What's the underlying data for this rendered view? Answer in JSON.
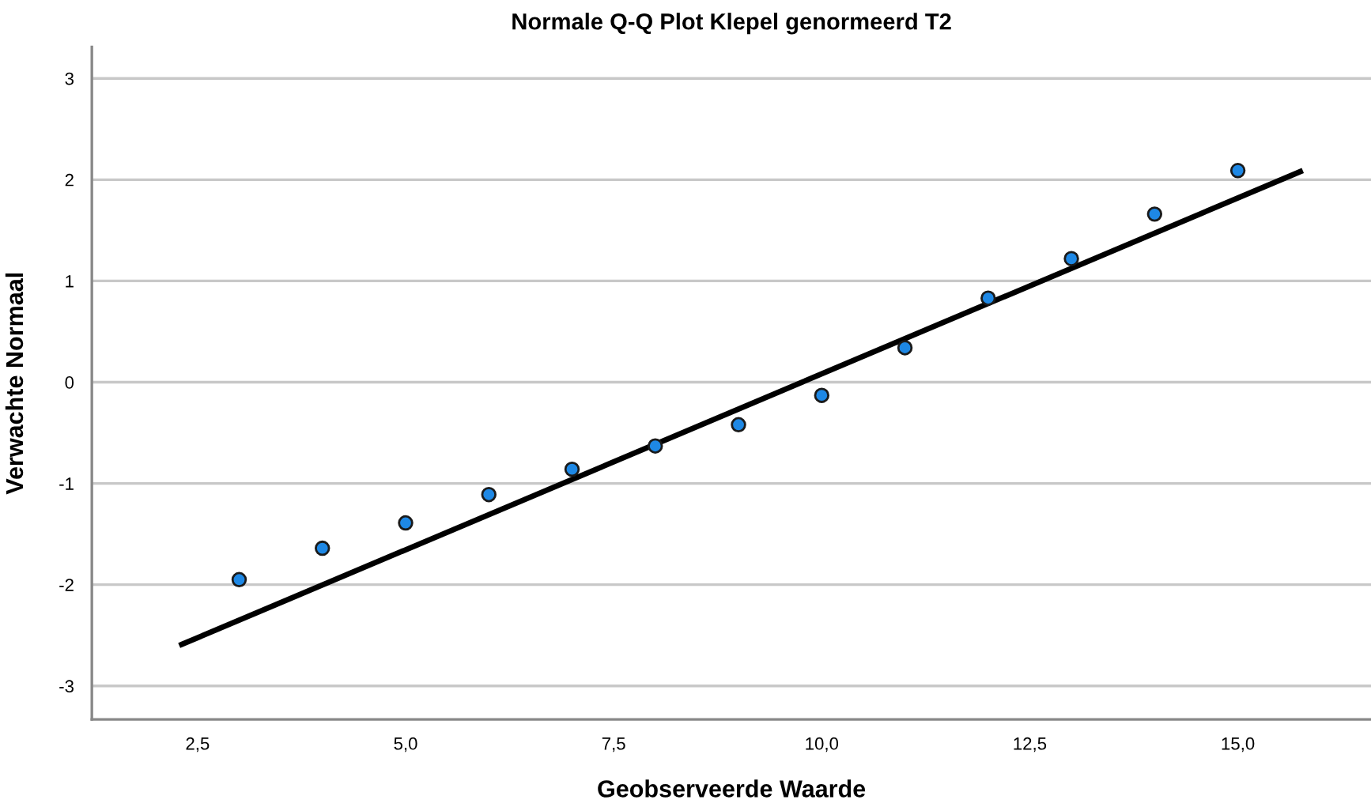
{
  "chart_data": {
    "type": "scatter",
    "title": "Normale Q-Q Plot Klepel genormeerd T2",
    "xlabel": "Geobserveerde Waarde",
    "ylabel": "Verwachte Normaal",
    "x": [
      3,
      4,
      5,
      6,
      7,
      8,
      9,
      10,
      11,
      12,
      13,
      14,
      15
    ],
    "series": [
      {
        "color": "#1e88e5",
        "marker": "circle",
        "values": [
          -1.95,
          -1.64,
          -1.39,
          -1.11,
          -0.86,
          -0.63,
          -0.42,
          -0.13,
          0.34,
          0.83,
          1.22,
          1.66,
          2.09
        ]
      },
      {
        "type": "line",
        "color": "#000000",
        "marker": "none",
        "line_style": "solid",
        "x": [
          2.31,
          15.75
        ],
        "values": [
          -2.59,
          2.08
        ]
      }
    ],
    "xlim": [
      1.23,
      16.6
    ],
    "ylim": [
      -3.33,
      3.31
    ],
    "xticks": [
      {
        "value": 2.5,
        "label": "2,5"
      },
      {
        "value": 5.0,
        "label": "5,0"
      },
      {
        "value": 7.5,
        "label": "7,5"
      },
      {
        "value": 10.0,
        "label": "10,0"
      },
      {
        "value": 12.5,
        "label": "12,5"
      },
      {
        "value": 15.0,
        "label": "15,0"
      }
    ],
    "yticks": [
      -3,
      -2,
      -1,
      0,
      1,
      2,
      3
    ],
    "grid": "y"
  }
}
